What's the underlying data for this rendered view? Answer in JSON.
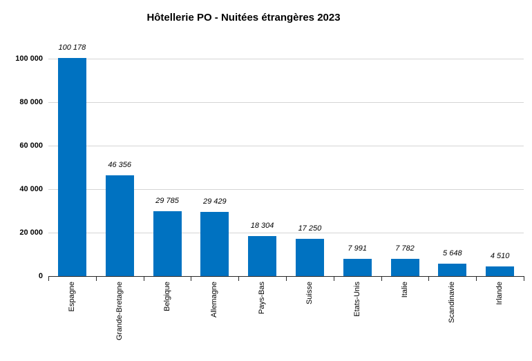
{
  "window": {
    "background": "#FFFFFF"
  },
  "chart_data": {
    "type": "bar",
    "title": "Hôtellerie PO - Nuitées étrangères 2023",
    "categories": [
      "Espagne",
      "Grande-Bretagne",
      "Belgique",
      "Allemagne",
      "Pays-Bas",
      "Suisse",
      "Etats-Unis",
      "Italie",
      "Scandinavie",
      "Irlande"
    ],
    "values": [
      100178,
      46356,
      29785,
      29429,
      18304,
      17250,
      7991,
      7782,
      5648,
      4510
    ],
    "value_labels": [
      "100 178",
      "46 356",
      "29 785",
      "29 429",
      "18 304",
      "17 250",
      "7 991",
      "7 782",
      "5 648",
      "4 510"
    ],
    "xlabel": "",
    "ylabel": "",
    "ylim": [
      0,
      100000
    ],
    "ytick_interval": 20000,
    "yticks": [
      0,
      20000,
      40000,
      60000,
      80000,
      100000
    ],
    "ytick_labels": [
      "0",
      "20 000",
      "40 000",
      "60 000",
      "80 000",
      "100 000"
    ],
    "grid": true,
    "legend": false,
    "x_labels_rotated_degrees": 90,
    "bar_color": "#0072C1",
    "gridline_color": "#D4D4D4",
    "axis_color": "#262626",
    "text_color": "#000000"
  }
}
